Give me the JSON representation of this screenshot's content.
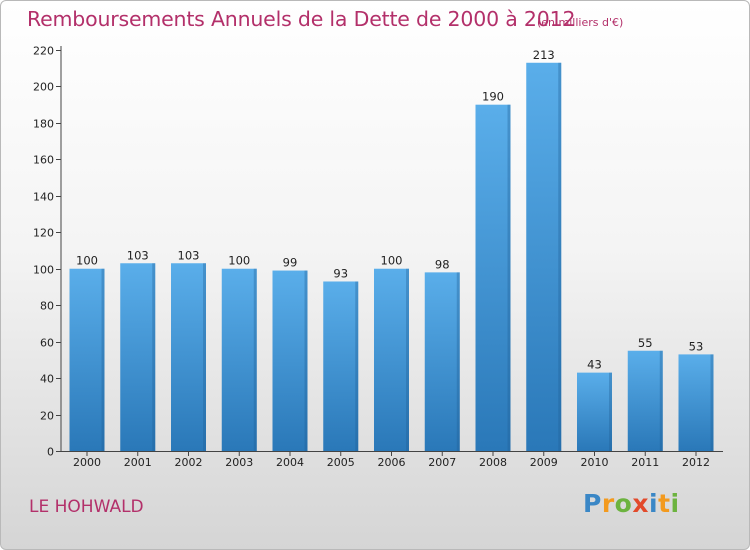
{
  "header": {
    "title": "Remboursements Annuels de la Dette de 2000 à 2012",
    "subtitle": "(en milliers d'€)"
  },
  "footer": {
    "town": "LE HOHWALD",
    "logo": "Proxiti",
    "logo_letters": [
      {
        "ch": "P",
        "color": "#3a87c6"
      },
      {
        "ch": "r",
        "color": "#f39a1e"
      },
      {
        "ch": "o",
        "color": "#6cb33f"
      },
      {
        "ch": "x",
        "color": "#e24a2b"
      },
      {
        "ch": "i",
        "color": "#3a87c6"
      },
      {
        "ch": "t",
        "color": "#f39a1e"
      },
      {
        "ch": "i",
        "color": "#6cb33f"
      }
    ]
  },
  "colors": {
    "title": "#b3306a",
    "bar_top": "#5aaeea",
    "bar_bottom": "#2a78b8"
  },
  "chart_data": {
    "type": "bar",
    "categories": [
      "2000",
      "2001",
      "2002",
      "2003",
      "2004",
      "2005",
      "2006",
      "2007",
      "2008",
      "2009",
      "2010",
      "2011",
      "2012"
    ],
    "values": [
      100,
      103,
      103,
      100,
      99,
      93,
      100,
      98,
      190,
      213,
      43,
      55,
      53
    ],
    "title": "Remboursements Annuels de la Dette de 2000 à 2012",
    "subtitle": "(en milliers d'€)",
    "xlabel": "",
    "ylabel": "",
    "ylim": [
      0,
      220
    ],
    "yticks": [
      0,
      20,
      40,
      60,
      80,
      100,
      120,
      140,
      160,
      180,
      200,
      220
    ],
    "grid": false,
    "data_labels": true
  }
}
